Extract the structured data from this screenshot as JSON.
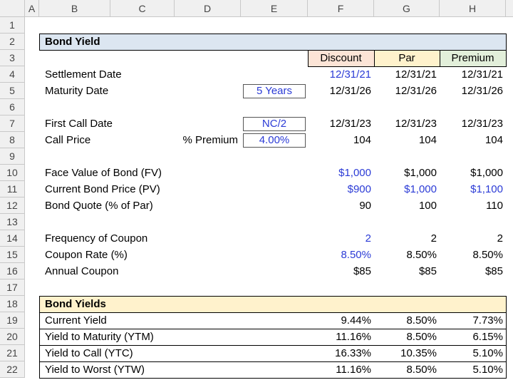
{
  "sheet": {
    "columns": [
      "A",
      "B",
      "C",
      "D",
      "E",
      "F",
      "G",
      "H"
    ],
    "row_numbers": [
      1,
      2,
      3,
      4,
      5,
      6,
      7,
      8,
      9,
      10,
      11,
      12,
      13,
      14,
      15,
      16,
      17,
      18,
      19,
      20,
      21,
      22
    ],
    "rows": [
      [
        null,
        null,
        null,
        null,
        null,
        null,
        null,
        null
      ],
      [
        null,
        "Bond Yield",
        null,
        null,
        null,
        null,
        null,
        null
      ],
      [
        null,
        null,
        null,
        null,
        null,
        "Discount",
        "Par",
        "Premium"
      ],
      [
        null,
        "Settlement Date",
        null,
        null,
        null,
        "12/31/21",
        "12/31/21",
        "12/31/21"
      ],
      [
        null,
        "Maturity Date",
        null,
        null,
        "5 Years",
        "12/31/26",
        "12/31/26",
        "12/31/26"
      ],
      [
        null,
        null,
        null,
        null,
        null,
        null,
        null,
        null
      ],
      [
        null,
        "First Call Date",
        null,
        null,
        "NC/2",
        "12/31/23",
        "12/31/23",
        "12/31/23"
      ],
      [
        null,
        "Call Price",
        null,
        "% Premium",
        "4.00%",
        "104",
        "104",
        "104"
      ],
      [
        null,
        null,
        null,
        null,
        null,
        null,
        null,
        null
      ],
      [
        null,
        "Face Value of Bond (FV)",
        null,
        null,
        null,
        "$1,000",
        "$1,000",
        "$1,000"
      ],
      [
        null,
        "Current Bond Price (PV)",
        null,
        null,
        null,
        "$900",
        "$1,000",
        "$1,100"
      ],
      [
        null,
        "Bond Quote (% of Par)",
        null,
        null,
        null,
        "90",
        "100",
        "110"
      ],
      [
        null,
        null,
        null,
        null,
        null,
        null,
        null,
        null
      ],
      [
        null,
        "Frequency of Coupon",
        null,
        null,
        null,
        "2",
        "2",
        "2"
      ],
      [
        null,
        "Coupon Rate (%)",
        null,
        null,
        null,
        "8.50%",
        "8.50%",
        "8.50%"
      ],
      [
        null,
        "Annual Coupon",
        null,
        null,
        null,
        "$85",
        "$85",
        "$85"
      ],
      [
        null,
        null,
        null,
        null,
        null,
        null,
        null,
        null
      ],
      [
        null,
        "Bond Yields",
        null,
        null,
        null,
        null,
        null,
        null
      ],
      [
        null,
        "Current Yield",
        null,
        null,
        null,
        "9.44%",
        "8.50%",
        "7.73%"
      ],
      [
        null,
        "Yield to Maturity (YTM)",
        null,
        null,
        null,
        "11.16%",
        "8.50%",
        "6.15%"
      ],
      [
        null,
        "Yield to Call (YTC)",
        null,
        null,
        null,
        "16.33%",
        "10.35%",
        "5.10%"
      ],
      [
        null,
        "Yield to Worst (YTW)",
        null,
        null,
        null,
        "11.16%",
        "8.50%",
        "5.10%"
      ]
    ]
  }
}
